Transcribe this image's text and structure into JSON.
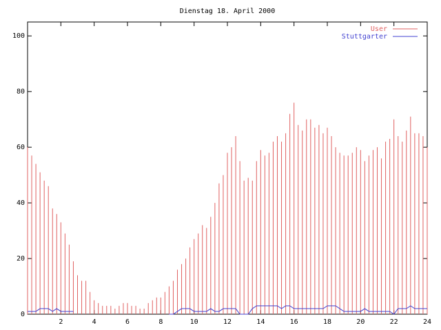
{
  "chart_data": {
    "type": "impulses",
    "title": "Dienstag 18. April 2000",
    "xlim": [
      0,
      24
    ],
    "ylim": [
      0,
      105
    ],
    "xticks": [
      2,
      4,
      6,
      8,
      10,
      12,
      14,
      16,
      18,
      20,
      22,
      24
    ],
    "yticks": [
      0,
      20,
      40,
      60,
      80,
      100
    ],
    "legend": "top-right",
    "x": [
      0,
      0.25,
      0.5,
      0.75,
      1,
      1.25,
      1.5,
      1.75,
      2,
      2.25,
      2.5,
      2.75,
      3,
      3.25,
      3.5,
      3.75,
      4,
      4.25,
      4.5,
      4.75,
      5,
      5.25,
      5.5,
      5.75,
      6,
      6.25,
      6.5,
      6.75,
      7,
      7.25,
      7.5,
      7.75,
      8,
      8.25,
      8.5,
      8.75,
      9,
      9.25,
      9.5,
      9.75,
      10,
      10.25,
      10.5,
      10.75,
      11,
      11.25,
      11.5,
      11.75,
      12,
      12.25,
      12.5,
      12.75,
      13,
      13.25,
      13.5,
      13.75,
      14,
      14.25,
      14.5,
      14.75,
      15,
      15.25,
      15.5,
      15.75,
      16,
      16.25,
      16.5,
      16.75,
      17,
      17.25,
      17.5,
      17.75,
      18,
      18.25,
      18.5,
      18.75,
      19,
      19.25,
      19.5,
      19.75,
      20,
      20.25,
      20.5,
      20.75,
      21,
      21.25,
      21.5,
      21.75,
      22,
      22.25,
      22.5,
      22.75,
      23,
      23.25,
      23.5,
      23.75,
      24
    ],
    "series": [
      {
        "name": "User",
        "color": "#e06060",
        "style": "impulses",
        "values": [
          60,
          57,
          54,
          51,
          48,
          46,
          38,
          36,
          33,
          29,
          25,
          19,
          14,
          12,
          12,
          8,
          5,
          4,
          3,
          3,
          3,
          2,
          3,
          4,
          4,
          3,
          3,
          2,
          2,
          4,
          5,
          6,
          6,
          8,
          10,
          12,
          16,
          18,
          20,
          24,
          27,
          29,
          32,
          31,
          35,
          40,
          47,
          50,
          58,
          60,
          64,
          55,
          48,
          49,
          48,
          55,
          59,
          57,
          58,
          62,
          64,
          62,
          65,
          72,
          76,
          68,
          66,
          70,
          70,
          67,
          68,
          65,
          67,
          64,
          60,
          58,
          57,
          57,
          58,
          60,
          59,
          55,
          57,
          59,
          60,
          56,
          62,
          63,
          70,
          64,
          62,
          66,
          71,
          65,
          65,
          64,
          60
        ]
      },
      {
        "name": "Stuttgarter",
        "color": "#4040d0",
        "style": "lines",
        "values": [
          1,
          1,
          1,
          2,
          2,
          2,
          1,
          2,
          1,
          1,
          1,
          1,
          null,
          null,
          null,
          null,
          null,
          null,
          null,
          null,
          null,
          null,
          null,
          null,
          null,
          null,
          null,
          null,
          null,
          null,
          null,
          null,
          null,
          null,
          0,
          0,
          1,
          2,
          2,
          2,
          1,
          1,
          1,
          1,
          2,
          1,
          1,
          2,
          2,
          2,
          2,
          0,
          0,
          0,
          2,
          3,
          3,
          3,
          3,
          3,
          3,
          2,
          3,
          3,
          2,
          2,
          2,
          2,
          2,
          2,
          2,
          2,
          3,
          3,
          3,
          2,
          1,
          1,
          1,
          1,
          1,
          2,
          1,
          1,
          1,
          1,
          1,
          1,
          0,
          2,
          2,
          2,
          3,
          2,
          2,
          2,
          2
        ]
      }
    ]
  }
}
